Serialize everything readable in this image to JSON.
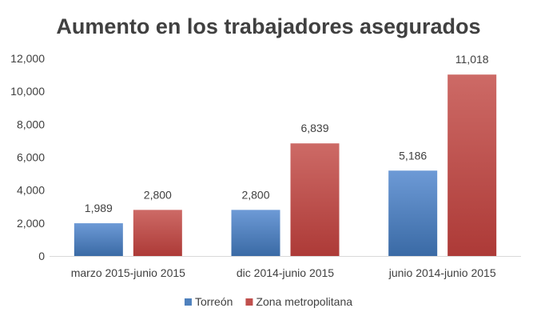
{
  "chart_data": {
    "type": "bar",
    "title": "Aumento en los trabajadores asegurados",
    "xlabel": "",
    "ylabel": "",
    "categories": [
      "marzo 2015-junio 2015",
      "dic 2014-junio 2015",
      "junio 2014-junio 2015"
    ],
    "series": [
      {
        "name": "Torreón",
        "values": [
          1989,
          2800,
          5186
        ],
        "value_labels": [],
        "color": "#4f81bd",
        "color_light": "#6d9ad6",
        "color_dark": "#3a6aa5"
      },
      {
        "name": "Zona metropolitana",
        "values": [
          2800,
          6839,
          11018
        ],
        "value_labels": [],
        "color": "#c0504d",
        "color_light": "#cd6a66",
        "color_dark": "#ad3a37"
      }
    ],
    "ylim": [
      0,
      12000
    ],
    "yticks": [
      0,
      2000,
      4000,
      6000,
      8000,
      10000,
      12000
    ],
    "ytick_labels": [
      "0",
      "2,000",
      "4,000",
      "6,000",
      "8,000",
      "10,000",
      "12,000"
    ],
    "grid": false,
    "legend_position": "bottom"
  }
}
